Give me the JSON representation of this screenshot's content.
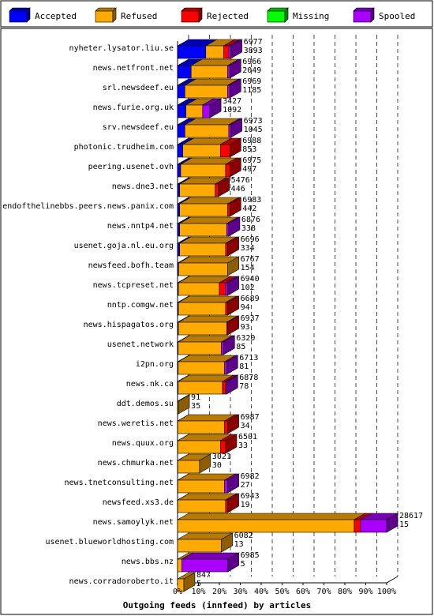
{
  "chart_data": {
    "type": "bar",
    "title": "Outgoing feeds (innfeed) by articles",
    "xlim": [
      0,
      100
    ],
    "x_ticks": [
      "0%",
      "10%",
      "20%",
      "30%",
      "40%",
      "50%",
      "60%",
      "70%",
      "80%",
      "90%",
      "100%"
    ],
    "legend_position": "top",
    "series": [
      {
        "name": "Accepted",
        "color": "#0000ff"
      },
      {
        "name": "Refused",
        "color": "#ffaa00"
      },
      {
        "name": "Rejected",
        "color": "#ff0000"
      },
      {
        "name": "Missing",
        "color": "#00ff00"
      },
      {
        "name": "Spooled",
        "color": "#aa00ff"
      }
    ],
    "rows": [
      {
        "label": "nyheter.lysator.liu.se",
        "total": "6977",
        "accepted": "3893",
        "pct": [
          13.5,
          8.5,
          2.5,
          0,
          1.0
        ]
      },
      {
        "label": "news.netfront.net",
        "total": "6966",
        "accepted": "2049",
        "pct": [
          6.5,
          17.5,
          0,
          0,
          1.0
        ]
      },
      {
        "label": "srl.newsdeef.eu",
        "total": "6969",
        "accepted": "1185",
        "pct": [
          3.5,
          20.5,
          0,
          0,
          1.0
        ]
      },
      {
        "label": "news.furie.org.uk",
        "total": "3427",
        "accepted": "1092",
        "pct": [
          4.0,
          8.0,
          0,
          0,
          3.5
        ]
      },
      {
        "label": "srv.newsdeef.eu",
        "total": "6973",
        "accepted": "1045",
        "pct": [
          3.5,
          21.0,
          0,
          0,
          1.0
        ]
      },
      {
        "label": "photonic.trudheim.com",
        "total": "6988",
        "accepted": "853",
        "pct": [
          2.5,
          18.0,
          4.5,
          0,
          0
        ]
      },
      {
        "label": "peering.usenet.ovh",
        "total": "6975",
        "accepted": "497",
        "pct": [
          1.5,
          21.5,
          2.0,
          0,
          0
        ]
      },
      {
        "label": "news.dne3.net",
        "total": "5476",
        "accepted": "446",
        "pct": [
          1.0,
          17.0,
          1.5,
          0,
          0
        ]
      },
      {
        "label": "endofthelinebbs.peers.news.panix.com",
        "total": "6983",
        "accepted": "442",
        "pct": [
          1.0,
          23.0,
          1.0,
          0,
          0
        ]
      },
      {
        "label": "news.nntp4.net",
        "total": "6876",
        "accepted": "338",
        "pct": [
          1.0,
          22.5,
          0,
          0,
          1.0
        ]
      },
      {
        "label": "usenet.goja.nl.eu.org",
        "total": "6696",
        "accepted": "334",
        "pct": [
          1.0,
          22.0,
          1.0,
          0,
          0
        ]
      },
      {
        "label": "newsfeed.bofh.team",
        "total": "6767",
        "accepted": "154",
        "pct": [
          0.5,
          23.5,
          0,
          0,
          0
        ]
      },
      {
        "label": "news.tcpreset.net",
        "total": "6940",
        "accepted": "102",
        "pct": [
          0.4,
          19.6,
          3.0,
          0,
          1.0
        ]
      },
      {
        "label": "nntp.comgw.net",
        "total": "6689",
        "accepted": "94",
        "pct": [
          0.4,
          22.6,
          1.0,
          0,
          0
        ]
      },
      {
        "label": "news.hispagatos.org",
        "total": "6937",
        "accepted": "93",
        "pct": [
          0.4,
          23.1,
          0.5,
          0,
          0
        ]
      },
      {
        "label": "usenet.network",
        "total": "6320",
        "accepted": "85",
        "pct": [
          0.3,
          20.7,
          0,
          0,
          1.0
        ]
      },
      {
        "label": "i2pn.org",
        "total": "6713",
        "accepted": "81",
        "pct": [
          0.3,
          22.2,
          0,
          0,
          1.0
        ]
      },
      {
        "label": "news.nk.ca",
        "total": "6878",
        "accepted": "78",
        "pct": [
          0.3,
          21.2,
          1.5,
          0,
          0.5
        ]
      },
      {
        "label": "ddt.demos.su",
        "total": "91",
        "accepted": "35",
        "pct": [
          0,
          0.4,
          0,
          0,
          0
        ]
      },
      {
        "label": "news.weretis.net",
        "total": "6987",
        "accepted": "34",
        "pct": [
          0.1,
          22.4,
          1.5,
          0,
          0
        ]
      },
      {
        "label": "news.quux.org",
        "total": "6501",
        "accepted": "33",
        "pct": [
          0.1,
          20.4,
          2.5,
          0,
          0
        ]
      },
      {
        "label": "news.chmurka.net",
        "total": "3021",
        "accepted": "30",
        "pct": [
          0.1,
          10.4,
          0,
          0,
          0
        ]
      },
      {
        "label": "news.tnetconsulting.net",
        "total": "6982",
        "accepted": "27",
        "pct": [
          0.1,
          22.4,
          0,
          0,
          1.5
        ]
      },
      {
        "label": "newsfeed.xs3.de",
        "total": "6943",
        "accepted": "19",
        "pct": [
          0.1,
          22.9,
          1.0,
          0,
          0
        ]
      },
      {
        "label": "news.samoylyk.net",
        "total": "28617",
        "accepted": "15",
        "pct": [
          0,
          84.5,
          3.0,
          0,
          12.5
        ]
      },
      {
        "label": "usenet.blueworldhosting.com",
        "total": "6082",
        "accepted": "13",
        "pct": [
          0,
          21.0,
          0,
          0,
          0
        ]
      },
      {
        "label": "news.bbs.nz",
        "total": "6985",
        "accepted": "5",
        "pct": [
          0,
          2.0,
          0,
          0,
          22.0
        ]
      },
      {
        "label": "news.corradoroberto.it",
        "total": "847",
        "accepted": "5",
        "pct": [
          0,
          3.0,
          0,
          0,
          0
        ]
      }
    ]
  }
}
